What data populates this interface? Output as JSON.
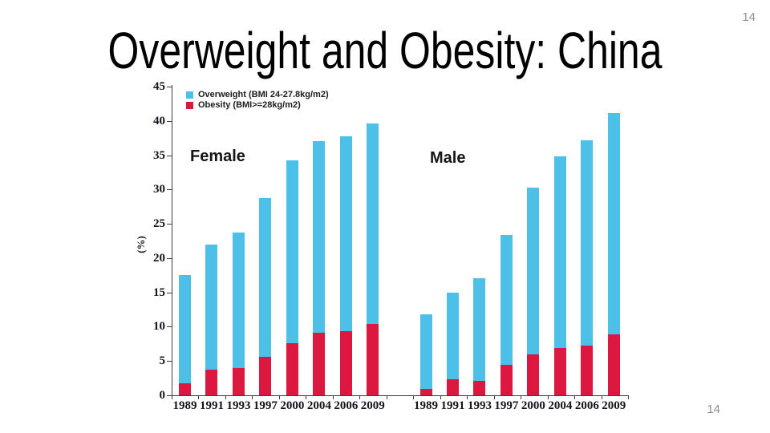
{
  "slide": {
    "title": "Overweight and Obesity: China",
    "page_number_top": "14",
    "page_number_bottom": "14"
  },
  "chart_data": {
    "type": "bar",
    "stacked": true,
    "title": "",
    "xlabel": "",
    "ylabel": "(%)",
    "ylim": [
      0,
      45
    ],
    "ytick_step": 5,
    "grid": false,
    "legend_position": "top-left",
    "legend": [
      {
        "key": "overweight",
        "label": "Overweight (BMI 24-27.8kg/m2)",
        "color": "#4CC0E6"
      },
      {
        "key": "obesity",
        "label": "Obesity (BMI>=28kg/m2)",
        "color": "#DC1740"
      }
    ],
    "categories": [
      "1989",
      "1991",
      "1993",
      "1997",
      "2000",
      "2004",
      "2006",
      "2009"
    ],
    "groups": [
      {
        "label": "Female",
        "series": [
          {
            "name": "Obesity (BMI>=28kg/m2)",
            "key": "obesity",
            "values": [
              1.7,
              3.7,
              4.0,
              5.6,
              7.6,
              9.1,
              9.3,
              10.4
            ]
          },
          {
            "name": "Overweight (BMI 24-27.8kg/m2)",
            "key": "overweight",
            "values": [
              15.8,
              18.3,
              19.7,
              23.1,
              26.6,
              27.9,
              28.4,
              29.2
            ]
          }
        ],
        "totals": [
          17.5,
          22.0,
          23.7,
          28.7,
          34.2,
          37.0,
          37.7,
          39.6
        ]
      },
      {
        "label": "Male",
        "series": [
          {
            "name": "Obesity (BMI>=28kg/m2)",
            "key": "obesity",
            "values": [
              0.9,
              2.3,
              2.1,
              4.4,
              6.0,
              6.9,
              7.3,
              8.9
            ]
          },
          {
            "name": "Overweight (BMI 24-27.8kg/m2)",
            "key": "overweight",
            "values": [
              10.9,
              12.7,
              15.0,
              19.0,
              24.3,
              27.9,
              29.9,
              32.2
            ]
          }
        ],
        "totals": [
          11.8,
          15.0,
          17.1,
          23.4,
          30.3,
          34.8,
          37.2,
          41.1
        ]
      }
    ]
  }
}
